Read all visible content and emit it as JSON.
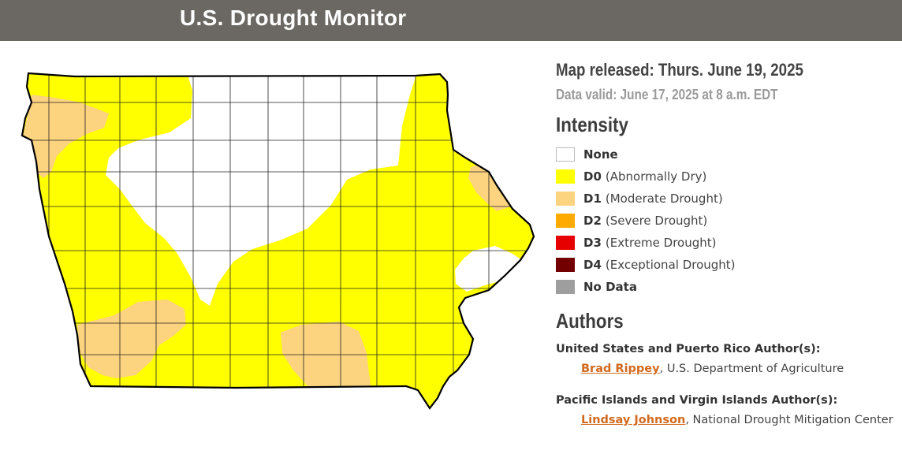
{
  "header": {
    "title": "U.S. Drought Monitor"
  },
  "map_info": {
    "released": "Map released: Thurs. June 19, 2025",
    "valid": "Data valid: June 17, 2025 at 8 a.m. EDT"
  },
  "intensity": {
    "heading": "Intensity",
    "items": [
      {
        "code": "None",
        "desc": "",
        "color": "#ffffff"
      },
      {
        "code": "D0",
        "desc": "(Abnormally Dry)",
        "color": "#ffff00"
      },
      {
        "code": "D1",
        "desc": "(Moderate Drought)",
        "color": "#fcd37f"
      },
      {
        "code": "D2",
        "desc": "(Severe Drought)",
        "color": "#ffaa00"
      },
      {
        "code": "D3",
        "desc": "(Extreme Drought)",
        "color": "#e60000"
      },
      {
        "code": "D4",
        "desc": "(Exceptional Drought)",
        "color": "#730000"
      },
      {
        "code": "No Data",
        "desc": "",
        "color": "#9e9e9e"
      }
    ]
  },
  "authors": {
    "heading": "Authors",
    "groups": [
      {
        "title": "United States and Puerto Rico Author(s):",
        "name": "Brad Rippey",
        "org": ", U.S. Department of Agriculture"
      },
      {
        "title": "Pacific Islands and Virgin Islands Author(s):",
        "name": "Lindsay Johnson",
        "org": ", National Drought Mitigation Center"
      }
    ]
  }
}
